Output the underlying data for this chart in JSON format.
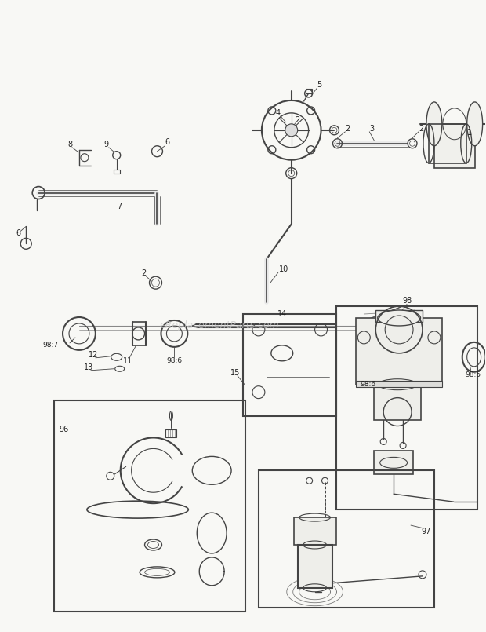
{
  "background_color": "#F8F8F5",
  "line_color": "#444444",
  "watermark_text": "eReplacementParts.com",
  "watermark_color": "#C8C8C8",
  "fig_width": 6.2,
  "fig_height": 8.05,
  "dpi": 100
}
